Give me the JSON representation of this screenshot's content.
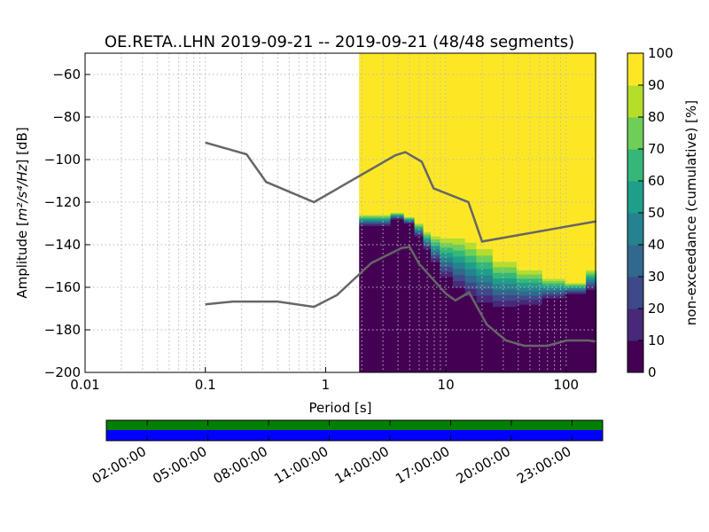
{
  "chart_data": {
    "type": "heatmap",
    "title": "OE.RETA..LHN   2019-09-21 -- 2019-09-21  (48/48 segments)",
    "xlabel": "Period [s]",
    "ylabel_prefix": "Amplitude [",
    "ylabel_unit": "m²/s⁴/Hz",
    "ylabel_suffix": "] [dB]",
    "xscale": "log",
    "xlim": [
      0.01,
      178
    ],
    "ylim": [
      -200,
      -50
    ],
    "xticks": [
      {
        "v": 0.01,
        "l": "0.01"
      },
      {
        "v": 0.1,
        "l": "0.1"
      },
      {
        "v": 1,
        "l": "1"
      },
      {
        "v": 10,
        "l": "10"
      },
      {
        "v": 100,
        "l": "100"
      }
    ],
    "yticks": [
      {
        "v": -60,
        "l": "−60"
      },
      {
        "v": -80,
        "l": "−80"
      },
      {
        "v": -100,
        "l": "−100"
      },
      {
        "v": -120,
        "l": "−120"
      },
      {
        "v": -140,
        "l": "−140"
      },
      {
        "v": -160,
        "l": "−160"
      },
      {
        "v": -180,
        "l": "−180"
      },
      {
        "v": -200,
        "l": "−200"
      }
    ],
    "grid": true,
    "ppsd": {
      "period_start": 1.9,
      "columns": [
        [
          2,
          -131,
          -126
        ],
        [
          3,
          -131,
          -126
        ],
        [
          4,
          -128,
          -125
        ],
        [
          5,
          -130,
          -127
        ],
        [
          6,
          -136,
          -130
        ],
        [
          7,
          -142,
          -134
        ],
        [
          8,
          -148,
          -136
        ],
        [
          10,
          -155,
          -137
        ],
        [
          13,
          -160,
          -137
        ],
        [
          16,
          -164,
          -139
        ],
        [
          20,
          -167,
          -142
        ],
        [
          30,
          -169,
          -148
        ],
        [
          50,
          -168,
          -152
        ],
        [
          80,
          -165,
          -156
        ],
        [
          120,
          -163,
          -158
        ],
        [
          178,
          -161,
          -152
        ]
      ]
    },
    "nhnm": [
      [
        0.1,
        -92
      ],
      [
        0.22,
        -97.5
      ],
      [
        0.32,
        -110.5
      ],
      [
        0.8,
        -120
      ],
      [
        3.8,
        -98
      ],
      [
        4.6,
        -96.5
      ],
      [
        6.3,
        -101
      ],
      [
        7.9,
        -113.5
      ],
      [
        15.4,
        -120
      ],
      [
        20,
        -138.5
      ],
      [
        178,
        -129
      ]
    ],
    "nlnm": [
      [
        0.1,
        -168
      ],
      [
        0.17,
        -166.7
      ],
      [
        0.4,
        -166.7
      ],
      [
        0.8,
        -169.2
      ],
      [
        1.24,
        -163.7
      ],
      [
        2.4,
        -148.6
      ],
      [
        4.3,
        -141.5
      ],
      [
        5,
        -141.1
      ],
      [
        6,
        -149
      ],
      [
        10,
        -163
      ],
      [
        12,
        -166.2
      ],
      [
        15.6,
        -162.4
      ],
      [
        21.9,
        -177.5
      ],
      [
        31.6,
        -185
      ],
      [
        45,
        -187.5
      ],
      [
        70,
        -187.5
      ],
      [
        101,
        -185
      ],
      [
        154,
        -185
      ],
      [
        178,
        -185.5
      ]
    ],
    "colorbar": {
      "label": "non-exceedance (cumulative) [%]",
      "range": [
        0,
        100
      ],
      "ticks": [
        "0",
        "10",
        "20",
        "30",
        "40",
        "50",
        "60",
        "70",
        "80",
        "90",
        "100"
      ]
    },
    "timeline": {
      "ticks": [
        "02:00:00",
        "05:00:00",
        "08:00:00",
        "11:00:00",
        "14:00:00",
        "17:00:00",
        "20:00:00",
        "23:00:00"
      ],
      "tick_hours": [
        2,
        5,
        8,
        11,
        14,
        17,
        20,
        23
      ],
      "coverage_color": "#008000",
      "data_color": "#0000ff"
    }
  }
}
